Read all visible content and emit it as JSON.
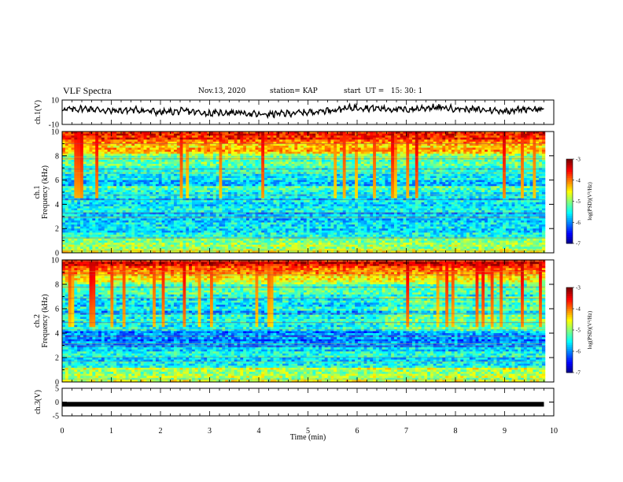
{
  "header": {
    "title": "VLF Spectra",
    "date": "Nov.13, 2020",
    "station": "station= KAP",
    "start": "start  UT =   15: 30: 1"
  },
  "chart_data": [
    {
      "type": "line",
      "panel": "ch1-waveform",
      "ylabel": "ch.1(V)",
      "ylim": [
        -10,
        10
      ],
      "yticks": [
        "10",
        "-10"
      ],
      "x": [
        0,
        0.5,
        1,
        1.5,
        2,
        2.5,
        3,
        3.5,
        4,
        4.5,
        5,
        5.5,
        6,
        6.5,
        7,
        7.5,
        8,
        8.5,
        9,
        9.5,
        9.8
      ],
      "values": [
        2,
        3,
        1,
        2,
        0,
        1,
        -1,
        0,
        -2,
        -1,
        0,
        2,
        4,
        3,
        2,
        4,
        3,
        2,
        1,
        3,
        2
      ]
    },
    {
      "type": "heatmap",
      "panel": "ch1-spectrogram",
      "ylabel": "ch.1 Frequency  (kHz)",
      "ylim": [
        0,
        10
      ],
      "yticks": [
        "0",
        "2",
        "4",
        "6",
        "8",
        "10"
      ],
      "colorbar": {
        "label": "log(PSD)(V²/Hz)",
        "ticks": [
          "-3",
          "-4",
          "-5",
          "-6",
          "-7"
        ],
        "range": [
          -7,
          -3
        ]
      }
    },
    {
      "type": "heatmap",
      "panel": "ch2-spectrogram",
      "ylabel": "ch.2 Frequency  (kHz)",
      "ylim": [
        0,
        10
      ],
      "yticks": [
        "0",
        "2",
        "4",
        "6",
        "8",
        "10"
      ],
      "colorbar": {
        "label": "log(PSD)(V²/Hz)",
        "ticks": [
          "-3",
          "-4",
          "-5",
          "-6",
          "-7"
        ],
        "range": [
          -7,
          -3
        ]
      }
    },
    {
      "type": "line",
      "panel": "ch3-waveform",
      "ylabel": "ch.3(V)",
      "ylim": [
        -5,
        5
      ],
      "yticks": [
        "5",
        "0",
        "-5"
      ],
      "x": [
        0,
        9.8
      ],
      "values": [
        -0.8,
        -0.8
      ]
    }
  ],
  "xaxis": {
    "label": "Time  (min)",
    "range": [
      0,
      10
    ],
    "ticks": [
      "0",
      "1",
      "2",
      "3",
      "4",
      "5",
      "6",
      "7",
      "8",
      "9",
      "10"
    ]
  }
}
